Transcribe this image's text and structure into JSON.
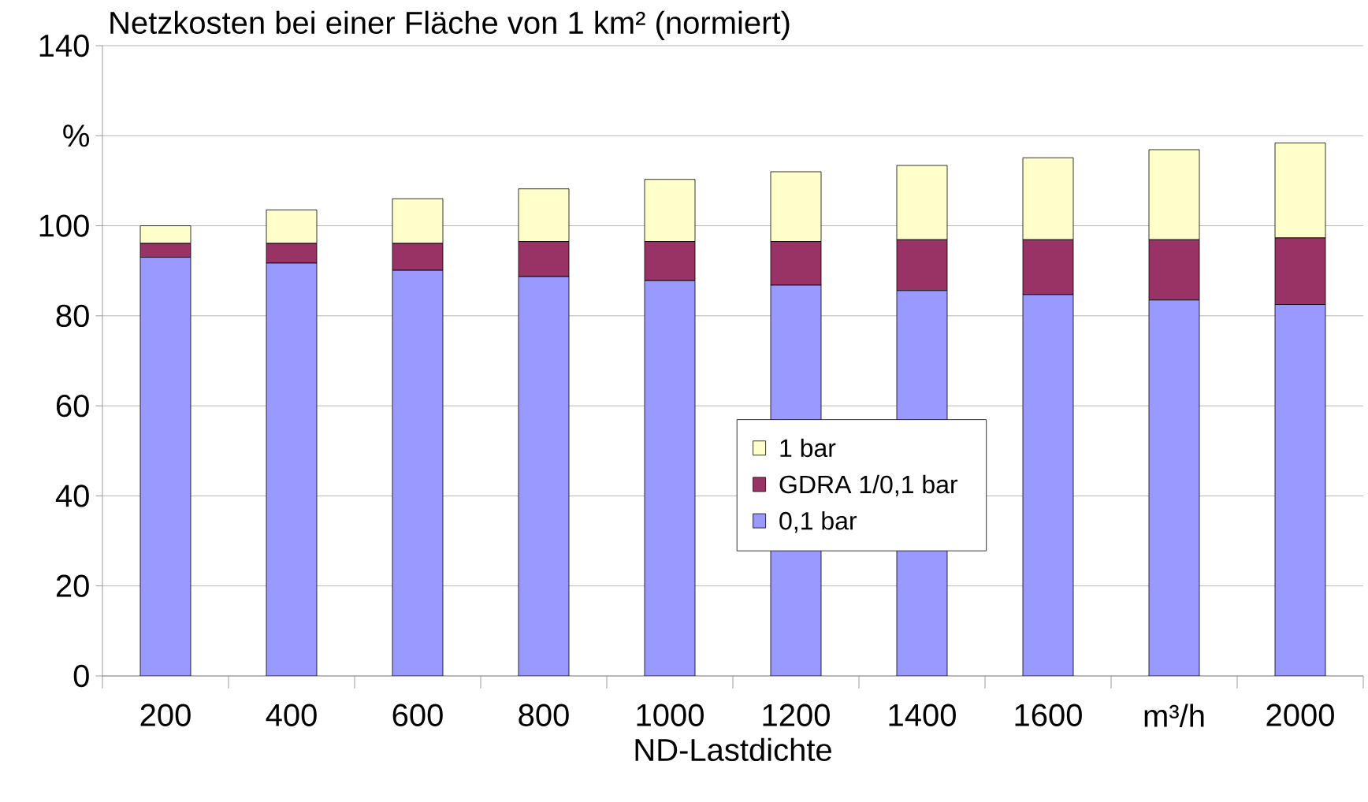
{
  "chart_data": {
    "type": "bar",
    "title": "Netzkosten bei einer Fläche von 1 km² (normiert)",
    "xlabel": "ND-Lastdichte",
    "categories": [
      "200",
      "400",
      "600",
      "800",
      "1000",
      "1200",
      "1400",
      "1600",
      "m³/h",
      "2000"
    ],
    "stacked": true,
    "series": [
      {
        "name": "0,1 bar",
        "color": "#9999ff",
        "values": [
          93.0,
          91.7,
          90.1,
          88.7,
          87.8,
          86.8,
          85.6,
          84.7,
          83.5,
          82.5
        ]
      },
      {
        "name": "GDRA 1/0,1 bar",
        "color": "#993366",
        "values": [
          3.1,
          4.4,
          6.0,
          7.8,
          8.7,
          9.7,
          11.3,
          12.2,
          13.4,
          14.8
        ]
      },
      {
        "name": "1 bar",
        "color": "#ffffcc",
        "values": [
          3.9,
          7.4,
          9.9,
          11.7,
          13.8,
          15.5,
          16.5,
          18.2,
          20.0,
          21.1
        ]
      }
    ],
    "ylim": [
      0,
      140
    ],
    "yticks": [
      0,
      20,
      40,
      60,
      80,
      100,
      {
        "value": 120,
        "label": "%"
      },
      140
    ],
    "grid": "y",
    "legend": "center"
  }
}
